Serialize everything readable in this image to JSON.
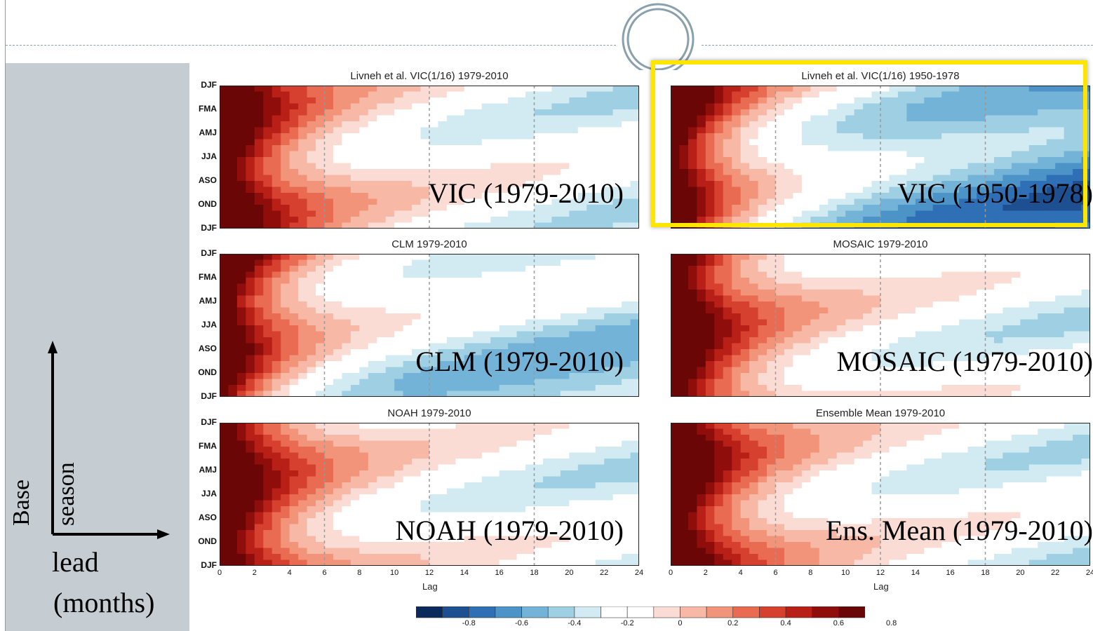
{
  "chart_data": {
    "type": "heatmap",
    "colorbar": {
      "colors": [
        "#0a2a5c",
        "#1d4f91",
        "#2f6fb5",
        "#4c93c8",
        "#74b3d8",
        "#9fcfe3",
        "#d2ebf3",
        "#ffffff",
        "#ffffff",
        "#fbdcd4",
        "#f7b9a6",
        "#f19479",
        "#e86b52",
        "#d6412f",
        "#b81f17",
        "#8f0e0b",
        "#6b0606"
      ],
      "ticks": [
        "-0.8",
        "-0.6",
        "-0.4",
        "-0.2",
        "0",
        "0.2",
        "0.4",
        "0.6",
        "0.8"
      ]
    },
    "panels": [
      {
        "title": "Livneh et al. VIC(1/16) 1979-2010",
        "label": "VIC (1979-2010)",
        "highlight": false
      },
      {
        "title": "Livneh et al. VIC(1/16) 1950-1978",
        "label": "VIC (1950-1978)",
        "highlight": true
      },
      {
        "title": "CLM 1979-2010",
        "label": "CLM (1979-2010)",
        "highlight": false
      },
      {
        "title": "MOSAIC 1979-2010",
        "label": "MOSAIC (1979-2010)",
        "highlight": false
      },
      {
        "title": "NOAH 1979-2010",
        "label": "NOAH (1979-2010)",
        "highlight": false
      },
      {
        "title": "Ensemble Mean 1979-2010",
        "label": "Ens. Mean (1979-2010)",
        "highlight": false
      }
    ],
    "y_labels": [
      "DJF",
      "FMA",
      "AMJ",
      "JJA",
      "ASO",
      "OND",
      "DJF"
    ],
    "x_ticks": [
      "0",
      "2",
      "4",
      "6",
      "8",
      "10",
      "12",
      "14",
      "16",
      "18",
      "20",
      "22",
      "24"
    ],
    "xlabel": "Lag",
    "xlim": [
      0,
      24
    ]
  },
  "annotations": {
    "base_label": "Base",
    "season_label": "season",
    "lead_label": "lead",
    "months_label": "(months)"
  }
}
